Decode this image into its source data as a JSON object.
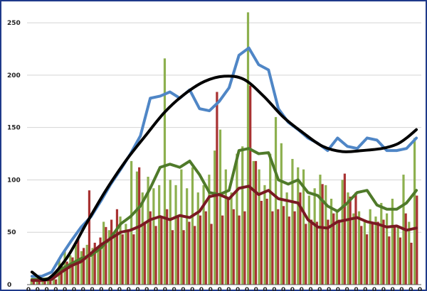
{
  "chart_data": {
    "type": "bar",
    "title": "",
    "xlabel": "",
    "ylabel": "",
    "ylim": [
      0,
      265
    ],
    "yticks": [
      0,
      50,
      100,
      150,
      200,
      250
    ],
    "grid": "horizontal",
    "legend": "none",
    "x_tick_labels": [
      "0",
      "0",
      "0",
      "0",
      "0",
      "0",
      "0",
      "0",
      "0",
      "0",
      "0",
      "0",
      "0",
      "0",
      "0",
      "0",
      "0",
      "0",
      "0",
      "0",
      "0",
      "0",
      "0",
      "0",
      "0",
      "0",
      "0",
      "0",
      "0",
      "0",
      "0",
      "0",
      "0",
      "0",
      "0",
      "0",
      "0",
      "0",
      "0",
      "0",
      "0",
      "0",
      "0",
      "0"
    ],
    "bar_series": [
      {
        "color": "#8db04f",
        "values": [
          5,
          4,
          4,
          5,
          6,
          25,
          32,
          28,
          38,
          32,
          38,
          35,
          34,
          60,
          52,
          48,
          65,
          58,
          118,
          108,
          88,
          103,
          92,
          95,
          216,
          100,
          95,
          110,
          92,
          112,
          88,
          95,
          105,
          128,
          148,
          110,
          88,
          125,
          132,
          260,
          118,
          110,
          95,
          125,
          160,
          135,
          88,
          120,
          112,
          110,
          85,
          92,
          105,
          95,
          82,
          72,
          100,
          88,
          68,
          70,
          60,
          72,
          65,
          78,
          68,
          82,
          55,
          105,
          60,
          140
        ],
        "x_index": [
          1,
          2,
          3,
          4,
          5,
          6,
          7,
          8,
          9,
          10,
          11,
          12,
          13,
          14,
          15,
          16,
          17,
          18,
          19,
          20,
          21,
          22,
          23,
          24,
          25,
          26,
          27,
          28,
          29,
          30,
          31,
          32,
          33,
          34,
          35,
          36,
          37,
          38,
          39,
          40,
          41,
          42,
          43,
          44,
          45,
          46,
          47,
          48,
          49,
          50,
          51,
          52,
          53,
          54,
          55,
          56,
          57,
          58,
          59,
          60,
          61,
          62,
          63,
          64,
          65,
          66,
          67,
          68,
          69,
          70
        ]
      },
      {
        "color": "#a83232",
        "values": [
          3,
          3,
          3,
          4,
          5,
          20,
          22,
          26,
          45,
          35,
          90,
          40,
          45,
          55,
          62,
          72,
          48,
          52,
          48,
          112,
          60,
          70,
          56,
          65,
          72,
          52,
          66,
          52,
          60,
          56,
          66,
          70,
          58,
          184,
          66,
          82,
          72,
          66,
          70,
          190,
          118,
          80,
          82,
          70,
          72,
          75,
          65,
          70,
          88,
          58,
          62,
          60,
          96,
          62,
          68,
          62,
          106,
          84,
          88,
          56,
          48,
          58,
          60,
          62,
          46,
          55,
          45,
          68,
          40,
          85
        ],
        "x_index": [
          1,
          2,
          3,
          4,
          5,
          6,
          7,
          8,
          9,
          10,
          11,
          12,
          13,
          14,
          15,
          16,
          17,
          18,
          19,
          20,
          21,
          22,
          23,
          24,
          25,
          26,
          27,
          28,
          29,
          30,
          31,
          32,
          33,
          34,
          35,
          36,
          37,
          38,
          39,
          40,
          41,
          42,
          43,
          44,
          45,
          46,
          47,
          48,
          49,
          50,
          51,
          52,
          53,
          54,
          55,
          56,
          57,
          58,
          59,
          60,
          61,
          62,
          63,
          64,
          65,
          66,
          67,
          68,
          69,
          70
        ]
      }
    ],
    "line_series": [
      {
        "color": "#4f86c6",
        "x": [
          1,
          3,
          5,
          7,
          9,
          11,
          13,
          15,
          17,
          19,
          21,
          23,
          25,
          27,
          29,
          31,
          33,
          35,
          37,
          39,
          41,
          43,
          45,
          47,
          49,
          51,
          53,
          55,
          57,
          59,
          61,
          63,
          65,
          67,
          69,
          71,
          73,
          75,
          77,
          79
        ],
        "values": [
          8,
          8,
          12,
          28,
          42,
          55,
          65,
          80,
          96,
          110,
          125,
          142,
          178,
          180,
          184,
          178,
          186,
          168,
          166,
          175,
          188,
          219,
          226,
          210,
          205,
          168,
          155,
          148,
          140,
          135,
          128,
          140,
          132,
          130,
          140,
          138,
          128,
          128,
          130,
          140
        ]
      },
      {
        "color": "#4f7a2a",
        "x": [
          1,
          3,
          5,
          7,
          9,
          11,
          13,
          15,
          17,
          19,
          21,
          23,
          25,
          27,
          29,
          31,
          33,
          35,
          37,
          39,
          41,
          43,
          45,
          47,
          49,
          51,
          53,
          55,
          57,
          59,
          61,
          63,
          65,
          67,
          69,
          71,
          73,
          75,
          77,
          79
        ],
        "values": [
          5,
          5,
          6,
          15,
          20,
          25,
          28,
          35,
          45,
          58,
          65,
          75,
          92,
          112,
          115,
          112,
          118,
          105,
          88,
          86,
          90,
          128,
          130,
          125,
          126,
          100,
          96,
          100,
          88,
          85,
          75,
          70,
          78,
          88,
          90,
          76,
          72,
          72,
          78,
          90
        ]
      },
      {
        "color": "#7a1a22",
        "x": [
          1,
          3,
          5,
          7,
          9,
          11,
          13,
          15,
          17,
          19,
          21,
          23,
          25,
          27,
          29,
          31,
          33,
          35,
          37,
          39,
          41,
          43,
          45,
          47,
          49,
          51,
          53,
          55,
          57,
          59,
          61,
          63,
          65,
          67,
          69,
          71,
          73,
          75,
          77,
          79
        ],
        "values": [
          4,
          4,
          5,
          12,
          18,
          22,
          30,
          38,
          44,
          50,
          52,
          56,
          62,
          65,
          62,
          66,
          64,
          70,
          84,
          86,
          82,
          92,
          94,
          86,
          90,
          82,
          80,
          78,
          62,
          55,
          54,
          60,
          62,
          64,
          60,
          58,
          55,
          56,
          52,
          54
        ]
      },
      {
        "color": "#000000",
        "x": [
          1,
          4,
          8,
          12,
          16,
          20,
          24,
          28,
          32,
          36,
          40,
          44,
          48,
          52,
          56,
          60,
          64,
          68,
          72,
          75,
          77,
          79
        ],
        "values": [
          12,
          5,
          25,
          58,
          90,
          118,
          142,
          165,
          182,
          194,
          199,
          196,
          180,
          160,
          145,
          132,
          127,
          128,
          130,
          134,
          140,
          148
        ]
      }
    ],
    "x_range": [
      0,
      80
    ]
  }
}
